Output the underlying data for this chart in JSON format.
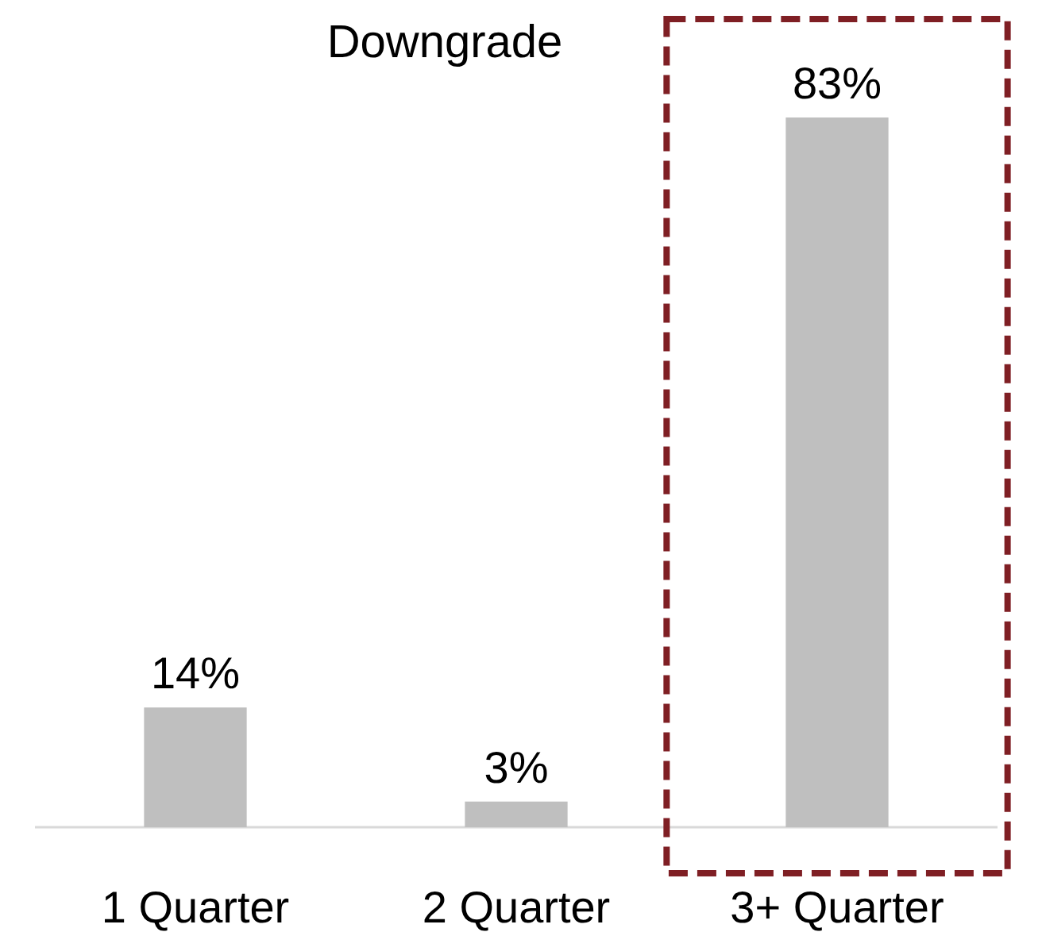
{
  "chart_data": {
    "type": "bar",
    "title": "Downgrade",
    "categories": [
      "1 Quarter",
      "2 Quarter",
      "3+ Quarter"
    ],
    "values": [
      14,
      3,
      83
    ],
    "color": "#bfbfbf",
    "value_labels": [
      "14%",
      "3%",
      "83%"
    ]
  }
}
